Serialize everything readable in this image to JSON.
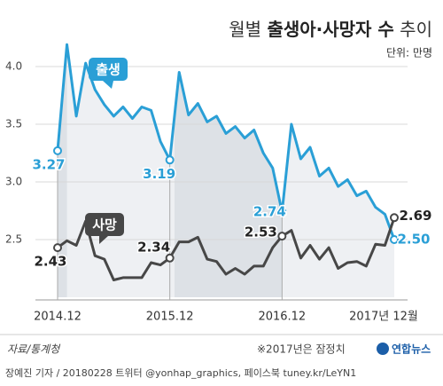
{
  "chart_data": {
    "type": "line",
    "title": [
      "월별 ",
      "출생아·사망자 수",
      " 추이"
    ],
    "unit": "단위: 만명",
    "categories": [
      "2014.12",
      null,
      null,
      null,
      null,
      null,
      null,
      null,
      null,
      null,
      null,
      null,
      "2015.12",
      null,
      null,
      null,
      null,
      null,
      null,
      null,
      null,
      null,
      null,
      null,
      "2016.12",
      null,
      null,
      null,
      null,
      null,
      null,
      null,
      null,
      null,
      null,
      null,
      "2017년 12월"
    ],
    "ylim": [
      2.0,
      4.3
    ],
    "yticks": [
      2.5,
      {
        "value": 3.0,
        "label": "3.0"
      },
      3.5,
      {
        "value": 4.0,
        "label": "4.0"
      }
    ],
    "series": [
      {
        "name": "출생",
        "color": "#2a9fd6",
        "values": [
          3.27,
          4.19,
          3.57,
          4.03,
          3.8,
          3.67,
          3.57,
          3.65,
          3.55,
          3.65,
          3.62,
          3.35,
          3.19,
          3.95,
          3.58,
          3.68,
          3.52,
          3.57,
          3.42,
          3.48,
          3.38,
          3.45,
          3.25,
          3.12,
          2.74,
          3.5,
          3.2,
          3.3,
          3.05,
          3.12,
          2.96,
          3.02,
          2.88,
          2.92,
          2.78,
          2.72,
          2.5
        ],
        "value_labels": [
          "3.27",
          null,
          null,
          null,
          null,
          null,
          null,
          null,
          null,
          null,
          null,
          null,
          "3.19",
          null,
          null,
          null,
          null,
          null,
          null,
          null,
          null,
          null,
          null,
          null,
          "2.74",
          null,
          null,
          null,
          null,
          null,
          null,
          null,
          null,
          null,
          null,
          null,
          "2.50"
        ]
      },
      {
        "name": "사망",
        "color": "#474747",
        "values": [
          2.43,
          2.49,
          2.45,
          2.66,
          2.36,
          2.33,
          2.15,
          2.17,
          2.17,
          2.17,
          2.3,
          2.28,
          2.34,
          2.48,
          2.48,
          2.52,
          2.33,
          2.31,
          2.2,
          2.25,
          2.2,
          2.27,
          2.27,
          2.43,
          2.53,
          2.58,
          2.34,
          2.45,
          2.33,
          2.43,
          2.25,
          2.3,
          2.31,
          2.27,
          2.46,
          2.45,
          2.69
        ],
        "value_labels": [
          "2.43",
          null,
          null,
          null,
          null,
          null,
          null,
          null,
          null,
          null,
          null,
          null,
          "2.34",
          null,
          null,
          null,
          null,
          null,
          null,
          null,
          null,
          null,
          null,
          null,
          "2.53",
          null,
          null,
          null,
          null,
          null,
          null,
          null,
          null,
          null,
          null,
          null,
          "2.69"
        ]
      }
    ],
    "source": "자료/통계청",
    "note": "※2017년은 잠정치",
    "logo": "연합뉴스",
    "credit": "장예진 기자 / 20180228 트위터 @yonhap_graphics, 페이스북 tuney.kr/LeYN1"
  }
}
